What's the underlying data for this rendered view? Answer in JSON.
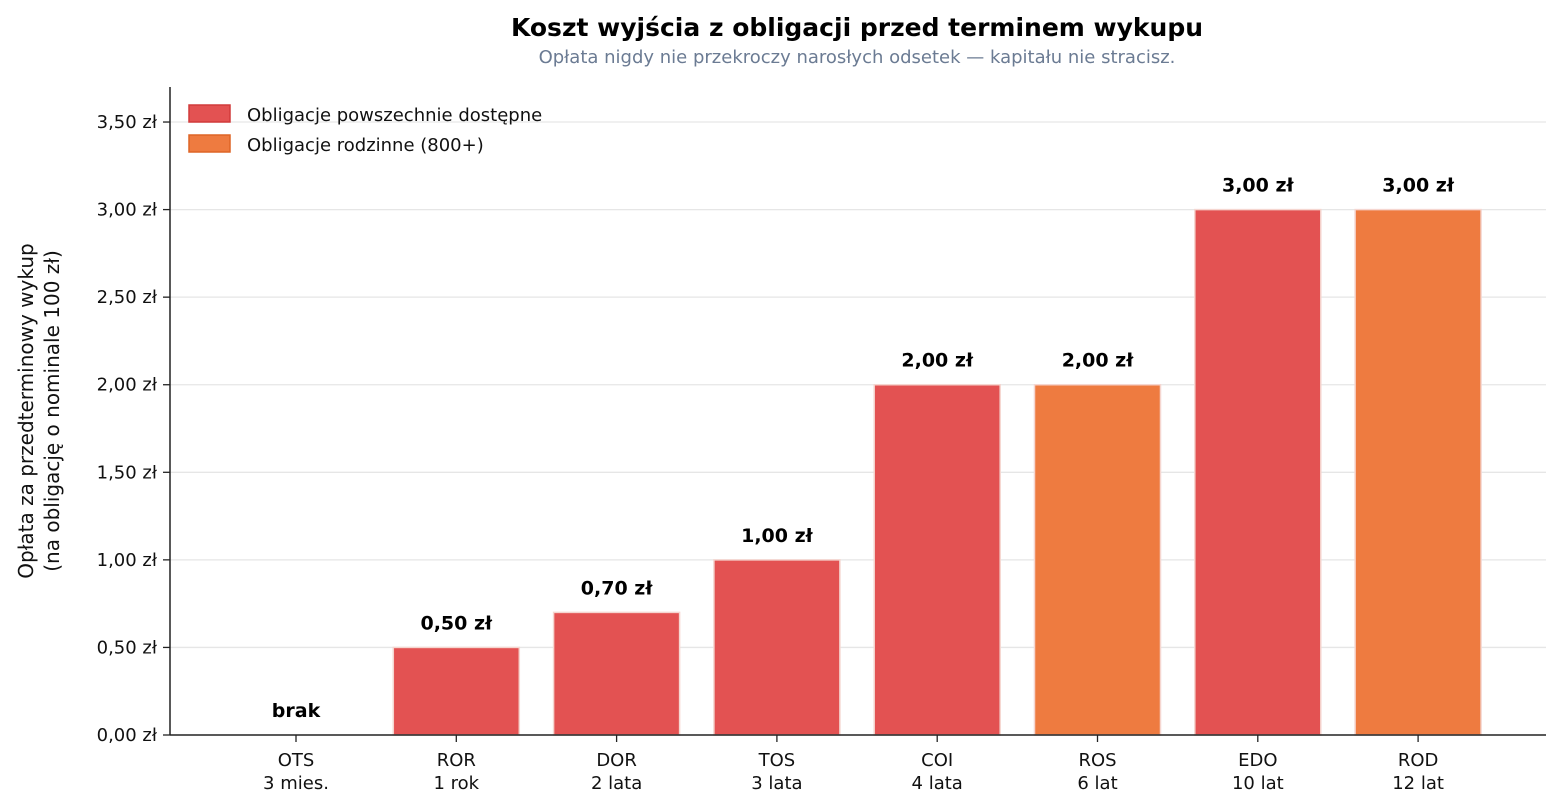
{
  "chart_data": {
    "type": "bar",
    "title": "Koszt wyjścia z obligacji przed terminem wykupu",
    "subtitle": "Opłata nigdy nie przekroczy narosłych odsetek — kapitału nie stracisz.",
    "ylabel_lines": [
      "Opłata za przedterminowy wykup",
      "(na obligację o nominale 100 zł)"
    ],
    "xlabel": "",
    "ylim": [
      0,
      3.7
    ],
    "yticks": [
      {
        "value": 0,
        "label": "0,00 zł"
      },
      {
        "value": 0.5,
        "label": "0,50 zł"
      },
      {
        "value": 1.0,
        "label": "1,00 zł"
      },
      {
        "value": 1.5,
        "label": "1,50 zł"
      },
      {
        "value": 2.0,
        "label": "2,00 zł"
      },
      {
        "value": 2.5,
        "label": "2,50 zł"
      },
      {
        "value": 3.0,
        "label": "3,00 zł"
      },
      {
        "value": 3.5,
        "label": "3,50 zł"
      }
    ],
    "grid": "horizontal",
    "legend_position": "top-left",
    "series": [
      {
        "name": "Obligacje powszechnie dostępne",
        "color": "#e35252",
        "edge": "#d13b3b"
      },
      {
        "name": "Obligacje rodzinne (800+)",
        "color": "#ee7b40",
        "edge": "#de6526"
      }
    ],
    "bars": [
      {
        "code": "OTS",
        "term": "3 mies.",
        "value": 0,
        "label": "brak",
        "series": 0
      },
      {
        "code": "ROR",
        "term": "1 rok",
        "value": 0.5,
        "label": "0,50 zł",
        "series": 0
      },
      {
        "code": "DOR",
        "term": "2 lata",
        "value": 0.7,
        "label": "0,70 zł",
        "series": 0
      },
      {
        "code": "TOS",
        "term": "3 lata",
        "value": 1.0,
        "label": "1,00 zł",
        "series": 0
      },
      {
        "code": "COI",
        "term": "4 lata",
        "value": 2.0,
        "label": "2,00 zł",
        "series": 0
      },
      {
        "code": "ROS",
        "term": "6 lat",
        "value": 2.0,
        "label": "2,00 zł",
        "series": 1
      },
      {
        "code": "EDO",
        "term": "10 lat",
        "value": 3.0,
        "label": "3,00 zł",
        "series": 0
      },
      {
        "code": "ROD",
        "term": "12 lat",
        "value": 3.0,
        "label": "3,00 zł",
        "series": 1
      }
    ],
    "colors": {
      "title": "#000000",
      "subtitle": "#6b7b93",
      "axis": "#222222",
      "grid": "#e6e6e6"
    }
  }
}
